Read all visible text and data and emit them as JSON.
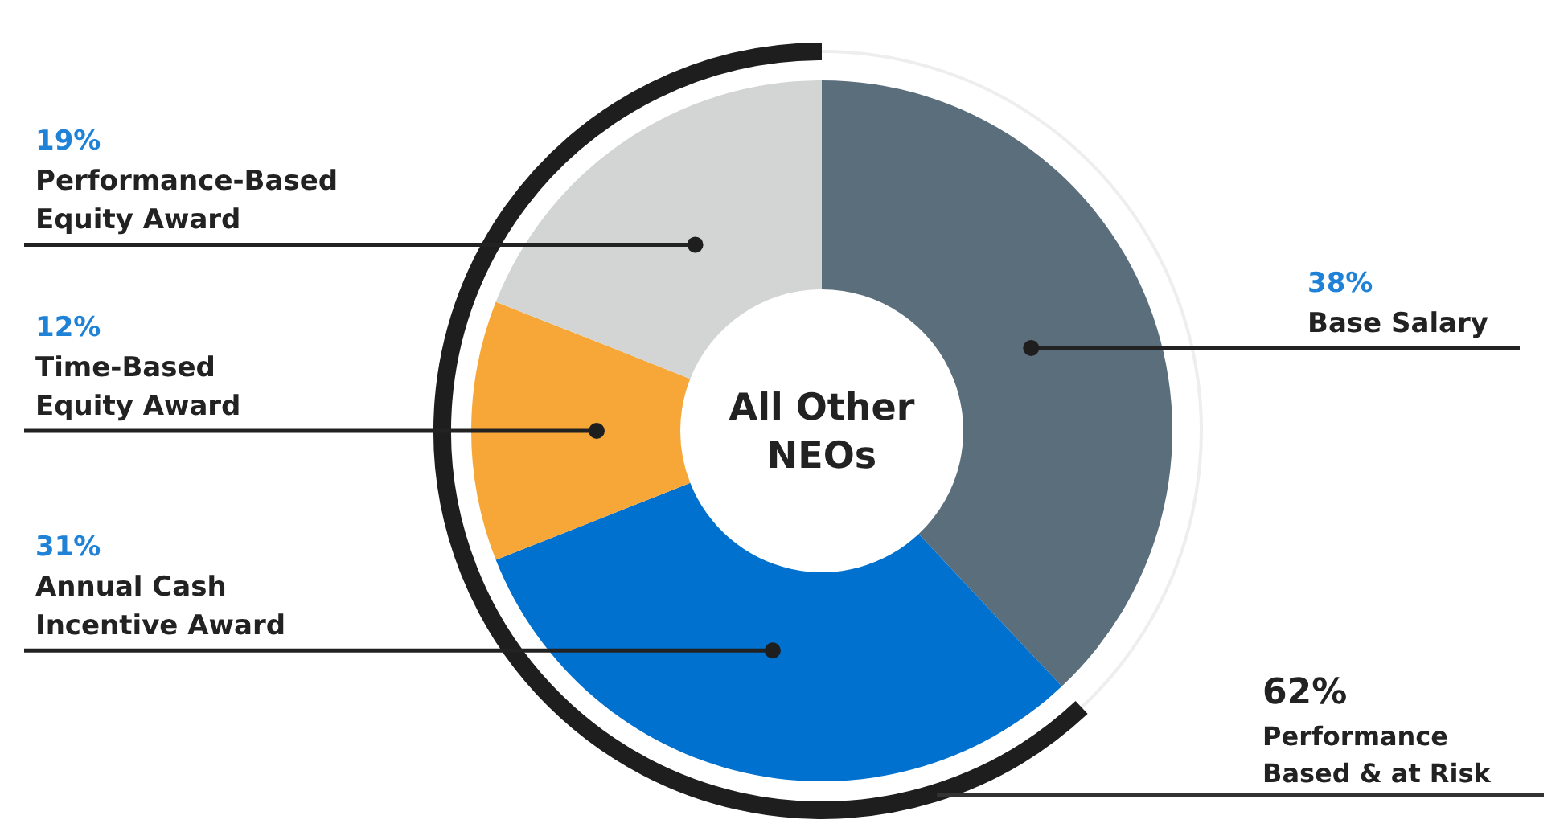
{
  "chart_data": {
    "type": "donut",
    "title": "All Other NEOs",
    "categories": [
      "Base Salary",
      "Annual Cash Incentive Award",
      "Time-Based Equity Award",
      "Performance-Based Equity Award"
    ],
    "values": [
      38,
      31,
      12,
      19
    ],
    "colors": [
      "#5b6e7c",
      "#0071ce",
      "#f7a738",
      "#d3d5d4"
    ],
    "value_labels": [
      "38%",
      "31%",
      "12%",
      "19%"
    ],
    "annotations": [
      "62%",
      "Performance Based & at Risk"
    ]
  }
}
